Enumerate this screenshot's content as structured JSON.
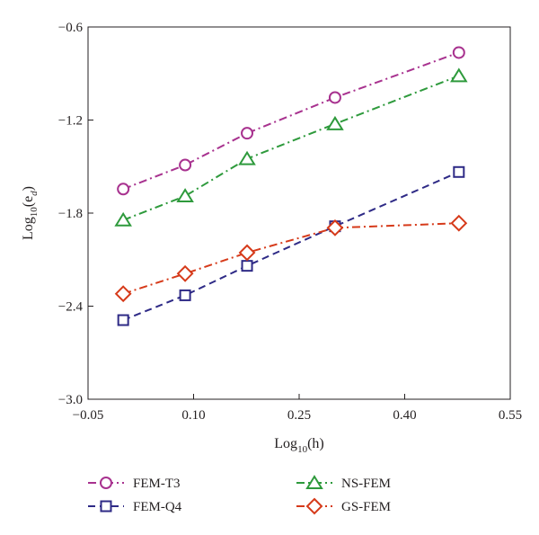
{
  "chart_data": {
    "type": "line",
    "xlabel": "Log",
    "xlabel_sub": "10",
    "xlabel_arg": "(h)",
    "ylabel": "Log",
    "ylabel_sub": "10",
    "ylabel_arg_open": "(e",
    "ylabel_arg_sub": "d",
    "ylabel_arg_close": ")",
    "xlim": [
      -0.05,
      0.55
    ],
    "ylim": [
      -3.0,
      -0.6
    ],
    "xticks": [
      -0.05,
      0.1,
      0.25,
      0.4,
      0.55
    ],
    "xtick_labels": [
      "−0.05",
      "0.10",
      "0.25",
      "0.40",
      "0.55"
    ],
    "yticks": [
      -3.0,
      -2.4,
      -1.8,
      -1.2,
      -0.6
    ],
    "ytick_labels": [
      "−3.0",
      "−2.4",
      "−1.8",
      "−1.2",
      "−0.6"
    ],
    "grid": false,
    "legend_position": "bottom",
    "x": [
      0.0,
      0.088,
      0.176,
      0.301,
      0.477
    ],
    "series": [
      {
        "name": "FEM-T3",
        "marker": "circle",
        "color": "#a8328f",
        "values": [
          -1.645,
          -1.49,
          -1.285,
          -1.055,
          -0.765
        ]
      },
      {
        "name": "NS-FEM",
        "marker": "triangle",
        "color": "#2e9a3c",
        "values": [
          -1.845,
          -1.69,
          -1.45,
          -1.225,
          -0.915
        ]
      },
      {
        "name": "FEM-Q4",
        "marker": "square",
        "color": "#2e2a86",
        "values": [
          -2.49,
          -2.33,
          -2.14,
          -1.885,
          -1.535
        ]
      },
      {
        "name": "GS-FEM",
        "marker": "diamond",
        "color": "#d63a1a",
        "values": [
          -2.32,
          -2.19,
          -2.055,
          -1.895,
          -1.865
        ]
      }
    ]
  }
}
